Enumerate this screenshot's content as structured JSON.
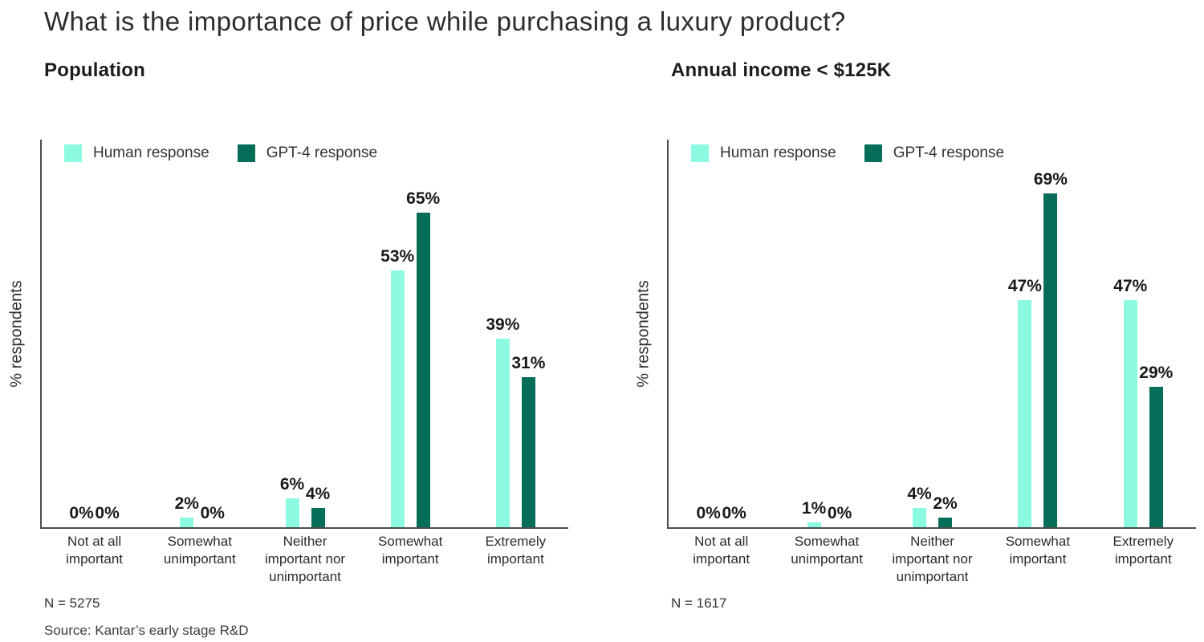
{
  "title": "What is the importance of price while purchasing a luxury product?",
  "source": "Source: Kantar’s early stage R&D",
  "y_axis_label": "% respondents",
  "colors": {
    "human_response": "#8CFAE0",
    "gpt4_response": "#066E58",
    "axis": "#4d4d4d",
    "value_text": "#191919"
  },
  "legend": [
    {
      "key": "human",
      "label": "Human response"
    },
    {
      "key": "gpt4",
      "label": "GPT-4 response"
    }
  ],
  "chart_data": [
    {
      "type": "bar",
      "title": "Population",
      "n_label": "N = 5275",
      "ylabel": "% respondents",
      "ylim": [
        0,
        80
      ],
      "grid": false,
      "legend_position": "top-left-inside",
      "categories": [
        "Not at all important",
        "Somewhat unimportant",
        "Neither important nor unimportant",
        "Somewhat important",
        "Extremely important"
      ],
      "category_lines": [
        [
          "Not at all",
          "important"
        ],
        [
          "Somewhat",
          "unimportant"
        ],
        [
          "Neither",
          "important nor",
          "unimportant"
        ],
        [
          "Somewhat",
          "important"
        ],
        [
          "Extremely",
          "important"
        ]
      ],
      "series": [
        {
          "name": "Human response",
          "color": "#8CFAE0",
          "values": [
            0,
            2,
            6,
            53,
            39
          ]
        },
        {
          "name": "GPT-4 response",
          "color": "#066E58",
          "values": [
            0,
            0,
            4,
            65,
            31
          ]
        }
      ]
    },
    {
      "type": "bar",
      "title": "Annual income < $125K",
      "n_label": "N = 1617",
      "ylabel": "% respondents",
      "ylim": [
        0,
        80
      ],
      "grid": false,
      "legend_position": "top-left-inside",
      "categories": [
        "Not at all important",
        "Somewhat unimportant",
        "Neither important nor unimportant",
        "Somewhat important",
        "Extremely important"
      ],
      "category_lines": [
        [
          "Not at all",
          "important"
        ],
        [
          "Somewhat",
          "unimportant"
        ],
        [
          "Neither",
          "important nor",
          "unimportant"
        ],
        [
          "Somewhat",
          "important"
        ],
        [
          "Extremely",
          "important"
        ]
      ],
      "series": [
        {
          "name": "Human response",
          "color": "#8CFAE0",
          "values": [
            0,
            1,
            4,
            47,
            47
          ]
        },
        {
          "name": "GPT-4 response",
          "color": "#066E58",
          "values": [
            0,
            0,
            2,
            69,
            29
          ]
        }
      ]
    }
  ]
}
